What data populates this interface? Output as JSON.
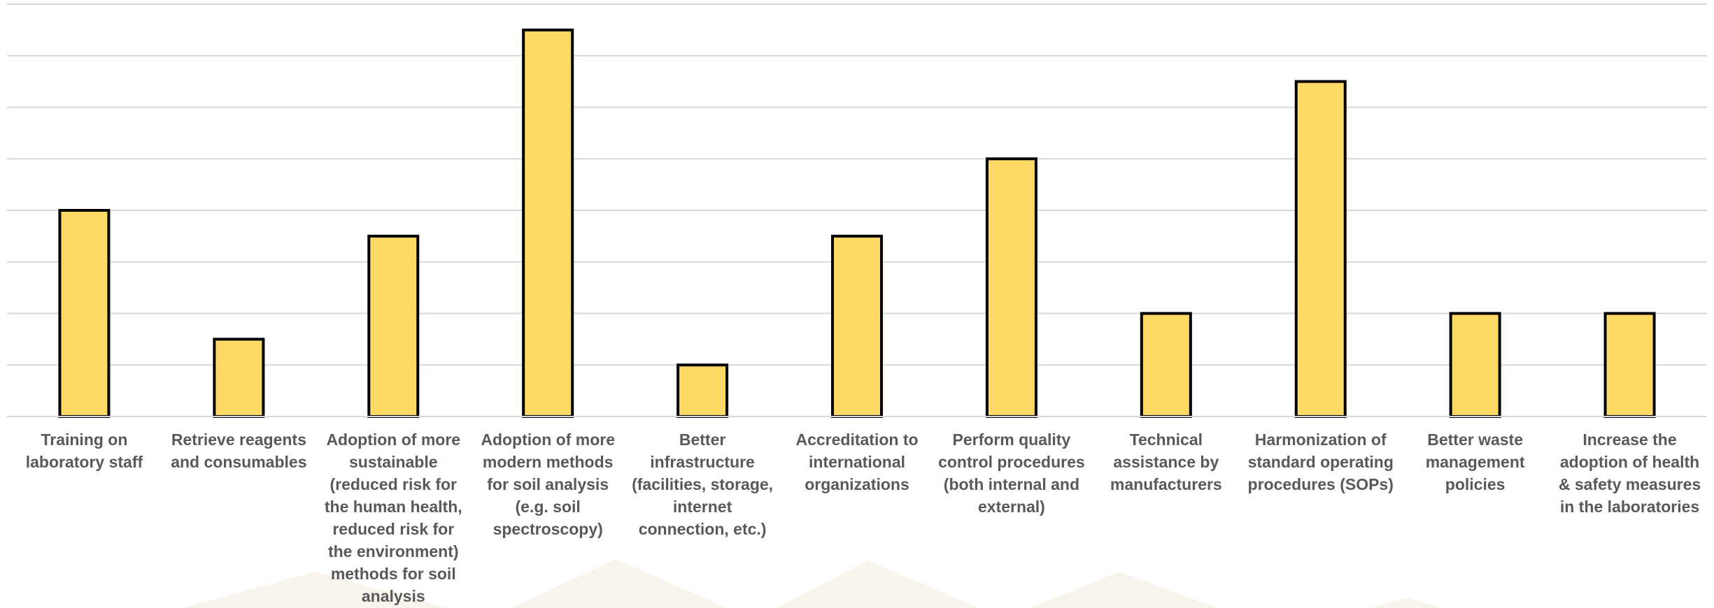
{
  "chart_data": {
    "type": "bar",
    "categories": [
      "Training on laboratory staff",
      "Retrieve reagents and consumables",
      "Adoption of more sustainable (reduced risk for the human health, reduced risk for the environment) methods for soil analysis",
      "Adoption of more modern methods for soil analysis (e.g. soil spectroscopy)",
      "Better infrastructure (facilities, storage, internet connection, etc.)",
      "Accreditation to international organizations",
      "Perform quality control procedures (both internal and external)",
      "Technical assistance by manufacturers",
      "Harmonization of standard operating procedures (SOPs)",
      "Better waste management policies",
      "Increase the adoption of health & safety measures in the laboratories"
    ],
    "values": [
      8,
      3,
      7,
      15,
      2,
      7,
      10,
      4,
      13,
      4,
      4
    ],
    "ylim": [
      0,
      16
    ],
    "ytick_step": 2,
    "grid": true,
    "title": "",
    "xlabel": "",
    "ylabel": "",
    "bar_color": "#FFD966",
    "bar_edge_color": "#000000",
    "grid_color": "#D9D9D9",
    "label_color": "#595959"
  }
}
